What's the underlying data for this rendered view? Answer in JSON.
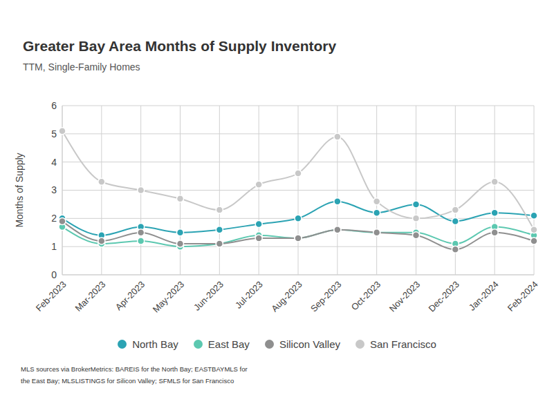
{
  "chart_data": {
    "type": "line",
    "title": "Greater Bay Area Months of Supply Inventory",
    "subtitle": "TTM, Single-Family Homes",
    "y_label": "Months of Supply",
    "source": "MLS sources via BrokerMetrics: BAREIS for the North Bay; EASTBAYMLS for the East Bay; MLSLISTINGS for Silicon Valley; SFMLS for San Francisco",
    "categories": [
      "Feb-2023",
      "Mar-2023",
      "Apr-2023",
      "May-2023",
      "Jun-2023",
      "Jul-2023",
      "Aug-2023",
      "Sep-2023",
      "Oct-2023",
      "Nov-2023",
      "Dec-2023",
      "Jan-2024",
      "Feb-2024"
    ],
    "series": [
      {
        "name": "North Bay",
        "color": "#2ba3b3",
        "values": [
          2.0,
          1.4,
          1.7,
          1.5,
          1.6,
          1.8,
          2.0,
          2.6,
          2.2,
          2.5,
          1.9,
          2.2,
          2.1
        ]
      },
      {
        "name": "East Bay",
        "color": "#5cc8b0",
        "values": [
          1.7,
          1.1,
          1.2,
          1.0,
          1.1,
          1.4,
          1.3,
          1.6,
          1.5,
          1.5,
          1.1,
          1.7,
          1.4
        ]
      },
      {
        "name": "Silicon Valley",
        "color": "#8f8f8f",
        "values": [
          1.9,
          1.2,
          1.5,
          1.1,
          1.1,
          1.3,
          1.3,
          1.6,
          1.5,
          1.4,
          0.9,
          1.5,
          1.2
        ]
      },
      {
        "name": "San Francisco",
        "color": "#c8c8c8",
        "values": [
          5.1,
          3.3,
          3.0,
          2.7,
          2.3,
          3.2,
          3.6,
          4.9,
          2.6,
          2.0,
          2.3,
          3.3,
          1.6
        ]
      }
    ],
    "ylim": [
      0,
      6
    ],
    "yticks": [
      0,
      1,
      2,
      3,
      4,
      5,
      6
    ],
    "grid": true,
    "legend": "bottom",
    "marker": "circle",
    "line_style": "smooth"
  }
}
